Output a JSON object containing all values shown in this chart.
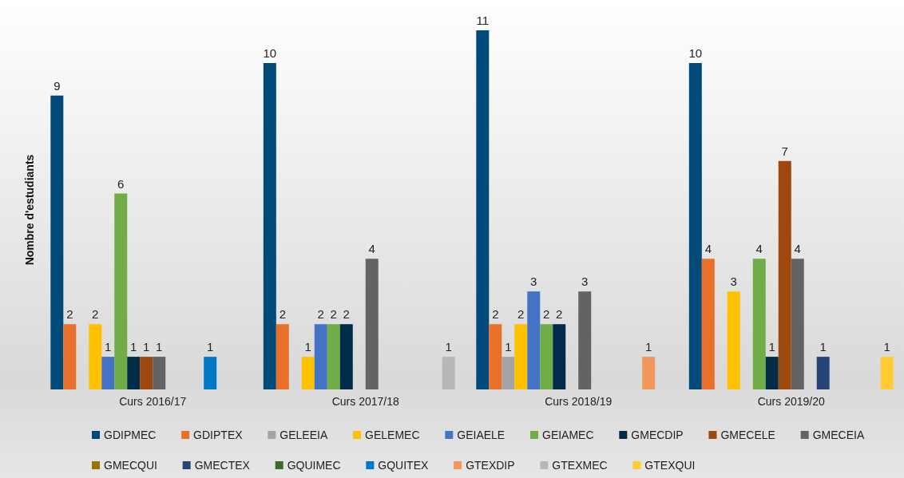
{
  "chart_data": {
    "type": "bar",
    "ylabel": "Nombre d'estudiants",
    "categories": [
      "Curs 2016/17",
      "Curs 2017/18",
      "Curs 2018/19",
      "Curs 2019/20"
    ],
    "ylim": [
      0,
      11
    ],
    "tick_labels": "x",
    "grid": false,
    "legend": "bottom",
    "data_labels": true,
    "series": [
      {
        "name": "GDIPMEC",
        "color": "#004a7a",
        "values": [
          9,
          10,
          11,
          10
        ]
      },
      {
        "name": "GDIPTEX",
        "color": "#e8702a",
        "values": [
          2,
          2,
          2,
          4
        ]
      },
      {
        "name": "GELEEIA",
        "color": "#a5a5a5",
        "values": [
          null,
          null,
          1,
          null
        ]
      },
      {
        "name": "GELEMEC",
        "color": "#ffc000",
        "values": [
          2,
          1,
          2,
          3
        ]
      },
      {
        "name": "GEIAELE",
        "color": "#4472c4",
        "values": [
          1,
          2,
          3,
          null
        ]
      },
      {
        "name": "GEIAMEC",
        "color": "#70ad47",
        "values": [
          6,
          2,
          2,
          4
        ]
      },
      {
        "name": "GMECDIP",
        "color": "#002b49",
        "values": [
          1,
          2,
          2,
          1
        ]
      },
      {
        "name": "GMECELE",
        "color": "#9e480e",
        "values": [
          1,
          null,
          null,
          7
        ]
      },
      {
        "name": "GMECEIA",
        "color": "#636363",
        "values": [
          1,
          4,
          3,
          4
        ]
      },
      {
        "name": "GMECQUI",
        "color": "#997300",
        "values": [
          null,
          null,
          null,
          null
        ]
      },
      {
        "name": "GMECTEX",
        "color": "#264478",
        "values": [
          null,
          null,
          null,
          1
        ]
      },
      {
        "name": "GQUIMEC",
        "color": "#43682b",
        "values": [
          null,
          null,
          null,
          null
        ]
      },
      {
        "name": "GQUITEX",
        "color": "#0078c8",
        "values": [
          1,
          null,
          null,
          null
        ]
      },
      {
        "name": "GTEXDIP",
        "color": "#f1975a",
        "values": [
          null,
          null,
          1,
          null
        ]
      },
      {
        "name": "GTEXMEC",
        "color": "#b7b7b7",
        "values": [
          null,
          1,
          null,
          null
        ]
      },
      {
        "name": "GTEXQUI",
        "color": "#ffcd33",
        "values": [
          null,
          null,
          null,
          1
        ]
      }
    ]
  }
}
